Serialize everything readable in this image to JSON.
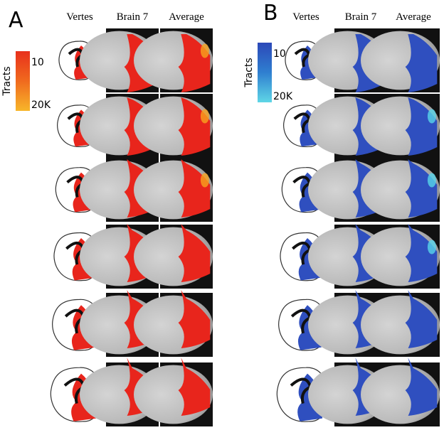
{
  "panels": [
    {
      "label": "A",
      "columns": [
        "Vertes",
        "Brain 7",
        "Average"
      ],
      "legend": {
        "title": "Tracts",
        "ticks": [
          "10",
          "20K"
        ]
      }
    },
    {
      "label": "B",
      "columns": [
        "Vertes",
        "Brain 7",
        "Average"
      ],
      "legend": {
        "title": "Tracts",
        "ticks": [
          "10",
          "20K"
        ]
      }
    }
  ]
}
